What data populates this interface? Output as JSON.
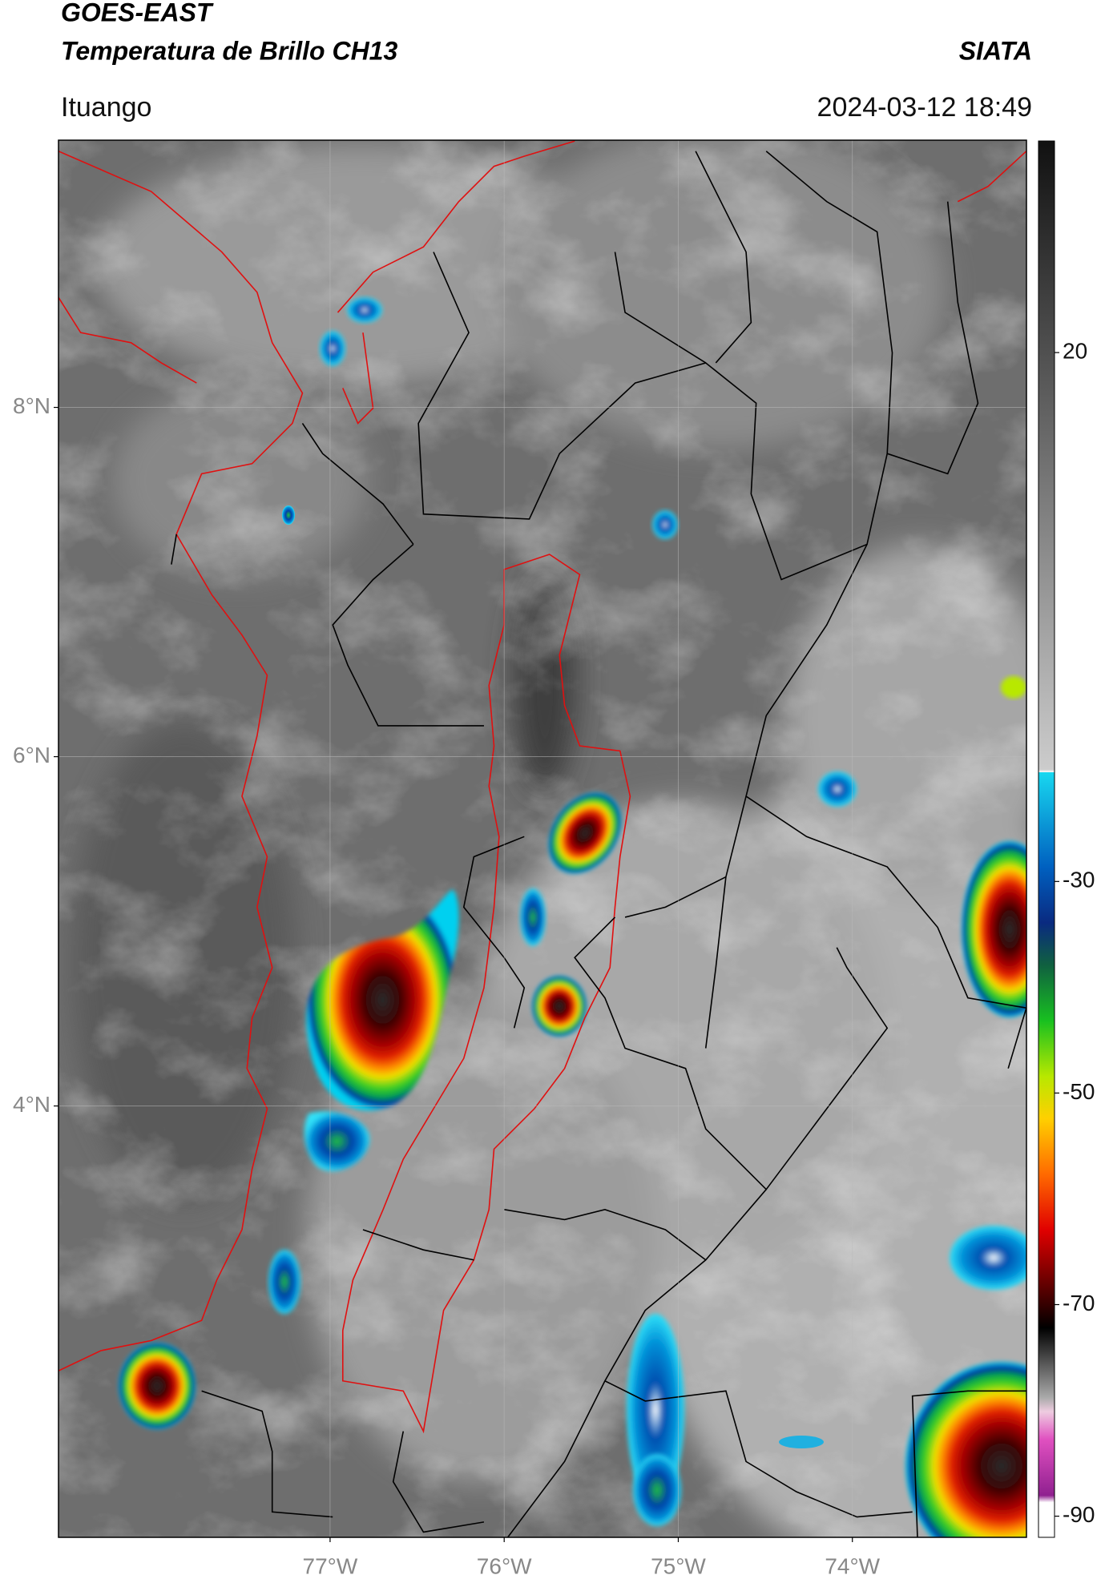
{
  "header": {
    "title": "GOES-EAST",
    "subtitle": "Temperatura de Brillo CH13",
    "brand": "SIATA",
    "location": "Ituango",
    "datetime": "2024-03-12 18:49"
  },
  "map": {
    "lonlim": [
      -78.56,
      -73.0
    ],
    "latlim": [
      1.53,
      9.53
    ],
    "lonticks": [
      {
        "value": -77,
        "label": "77°W"
      },
      {
        "value": -76,
        "label": "76°W"
      },
      {
        "value": -75,
        "label": "75°W"
      },
      {
        "value": -74,
        "label": "74°W"
      }
    ],
    "latticks": [
      {
        "value": 8,
        "label": "8°N"
      },
      {
        "value": 6,
        "label": "6°N"
      },
      {
        "value": 4,
        "label": "4°N"
      }
    ],
    "grid": true
  },
  "colorbar": {
    "lim": [
      -92,
      40
    ],
    "ticks": [
      20,
      -30,
      -50,
      -70,
      -90
    ]
  }
}
